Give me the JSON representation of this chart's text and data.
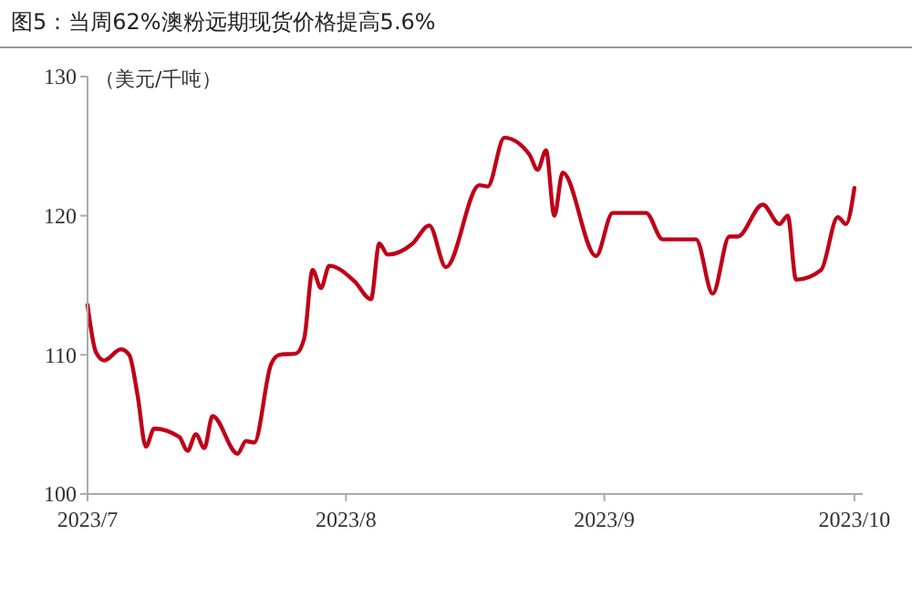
{
  "chart_data": {
    "type": "line",
    "title": "图5：当周62%澳粉远期现货价格提高5.6%",
    "ylabel": "（美元/千吨）",
    "x": [
      "2023-07-01",
      "2023-07-02",
      "2023-07-03",
      "2023-07-05",
      "2023-07-06",
      "2023-07-07",
      "2023-07-08",
      "2023-07-09",
      "2023-07-12",
      "2023-07-13",
      "2023-07-14",
      "2023-07-15",
      "2023-07-16",
      "2023-07-19",
      "2023-07-20",
      "2023-07-21",
      "2023-07-23",
      "2023-07-24",
      "2023-07-26",
      "2023-07-27",
      "2023-07-28",
      "2023-07-29",
      "2023-07-30",
      "2023-08-02",
      "2023-08-04",
      "2023-08-05",
      "2023-08-06",
      "2023-08-09",
      "2023-08-11",
      "2023-08-13",
      "2023-08-17",
      "2023-08-18",
      "2023-08-20",
      "2023-08-23",
      "2023-08-24",
      "2023-08-25",
      "2023-08-26",
      "2023-08-27",
      "2023-08-31",
      "2023-09-02",
      "2023-09-06",
      "2023-09-08",
      "2023-09-12",
      "2023-09-14",
      "2023-09-16",
      "2023-09-17",
      "2023-09-20",
      "2023-09-22",
      "2023-09-23",
      "2023-09-24",
      "2023-09-27",
      "2023-09-29",
      "2023-09-30",
      "2023-10-01"
    ],
    "series": [
      {
        "color": "#c00018",
        "values": [
          113.6,
          110.2,
          109.6,
          110.4,
          110.0,
          107.1,
          103.4,
          104.7,
          104.1,
          103.1,
          104.3,
          103.3,
          105.6,
          102.9,
          103.8,
          103.7,
          109.3,
          110.0,
          110.1,
          111.2,
          116.1,
          114.8,
          116.4,
          115.3,
          114.0,
          118.0,
          117.2,
          118.0,
          119.3,
          116.3,
          122.2,
          122.1,
          125.6,
          124.4,
          123.3,
          124.7,
          120.0,
          123.1,
          117.1,
          120.2,
          120.2,
          118.3,
          118.3,
          114.4,
          118.5,
          118.5,
          120.8,
          119.4,
          120.0,
          115.4,
          116.1,
          119.9,
          119.4,
          122.0
        ]
      }
    ],
    "xlim": [
      "2023-07-01",
      "2023-10-02"
    ],
    "xticks": [
      {
        "value": "2023-07-01",
        "label": "2023/7"
      },
      {
        "value": "2023-08-01",
        "label": "2023/8"
      },
      {
        "value": "2023-09-01",
        "label": "2023/9"
      },
      {
        "value": "2023-10-01",
        "label": "2023/10"
      }
    ],
    "ylim": [
      100,
      130
    ],
    "yticks": [
      100,
      110,
      120,
      130
    ],
    "grid": false,
    "marker": "none",
    "line_style": "solid"
  }
}
